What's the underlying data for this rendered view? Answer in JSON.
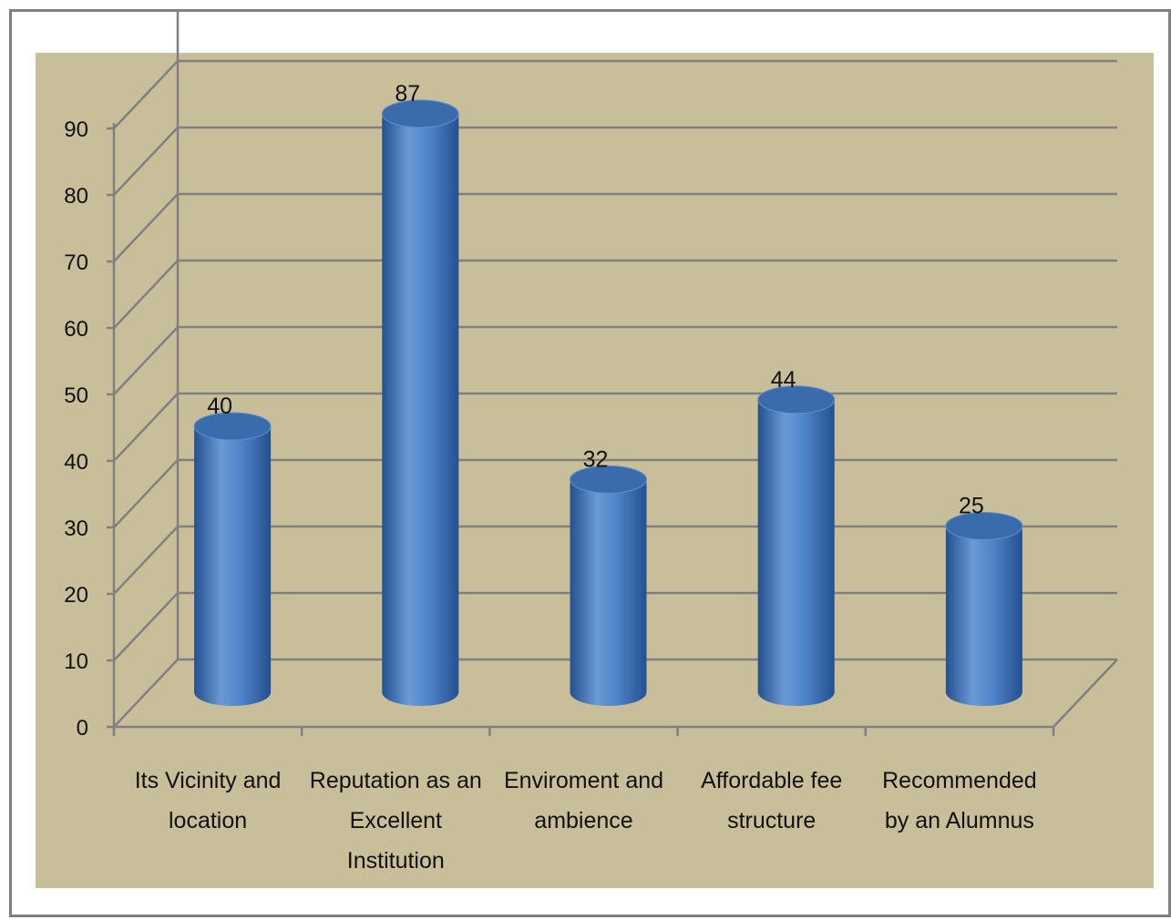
{
  "chart_data": {
    "type": "bar",
    "style": "3d-cylinder",
    "categories": [
      "Its Vicinity and location",
      "Reputation as an Excellent Institution",
      "Enviroment and ambience",
      "Affordable fee structure",
      "Recommended by an Alumnus"
    ],
    "category_lines": [
      [
        "Its Vicinity and",
        "location"
      ],
      [
        "Reputation as an",
        "Excellent",
        "Institution"
      ],
      [
        "Enviroment and",
        "ambience"
      ],
      [
        "Affordable fee",
        "structure"
      ],
      [
        "Recommended",
        "by an Alumnus"
      ]
    ],
    "values": [
      40,
      87,
      32,
      44,
      25
    ],
    "data_labels": [
      "40",
      "87",
      "32",
      "44",
      "25"
    ],
    "ylim": [
      0,
      90
    ],
    "yticks": [
      "0",
      "10",
      "20",
      "30",
      "40",
      "50",
      "60",
      "70",
      "80",
      "90"
    ],
    "grid": true,
    "legend": "none",
    "colors": {
      "plot_background": "#c8bf9a",
      "gridline": "#808080",
      "bar_dark": "#24508f",
      "bar_mid": "#4f85c9",
      "bar_light": "#6a9ad6",
      "bar_top": "#3a6cab"
    }
  }
}
